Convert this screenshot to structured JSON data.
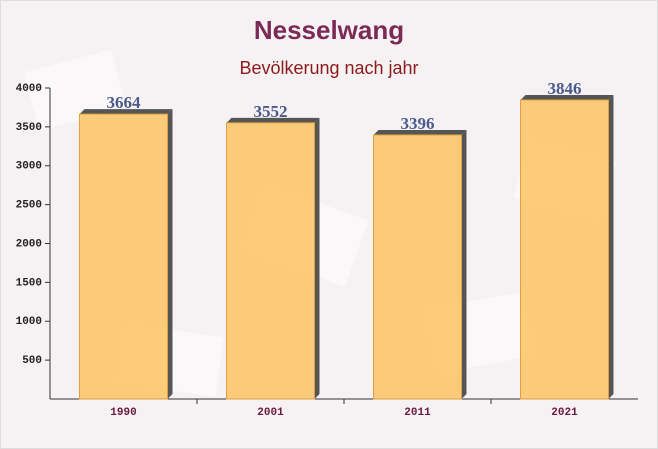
{
  "chart_data": {
    "type": "bar",
    "title": "Nesselwang",
    "subtitle": "Bevölkerung nach jahr",
    "categories": [
      "1990",
      "2001",
      "2011",
      "2021"
    ],
    "values": [
      3664,
      3552,
      3396,
      3846
    ],
    "color": "#fdc463",
    "ylim": [
      0,
      4000
    ],
    "yticks": [
      500,
      1000,
      1500,
      2000,
      2500,
      3000,
      3500,
      4000
    ]
  }
}
